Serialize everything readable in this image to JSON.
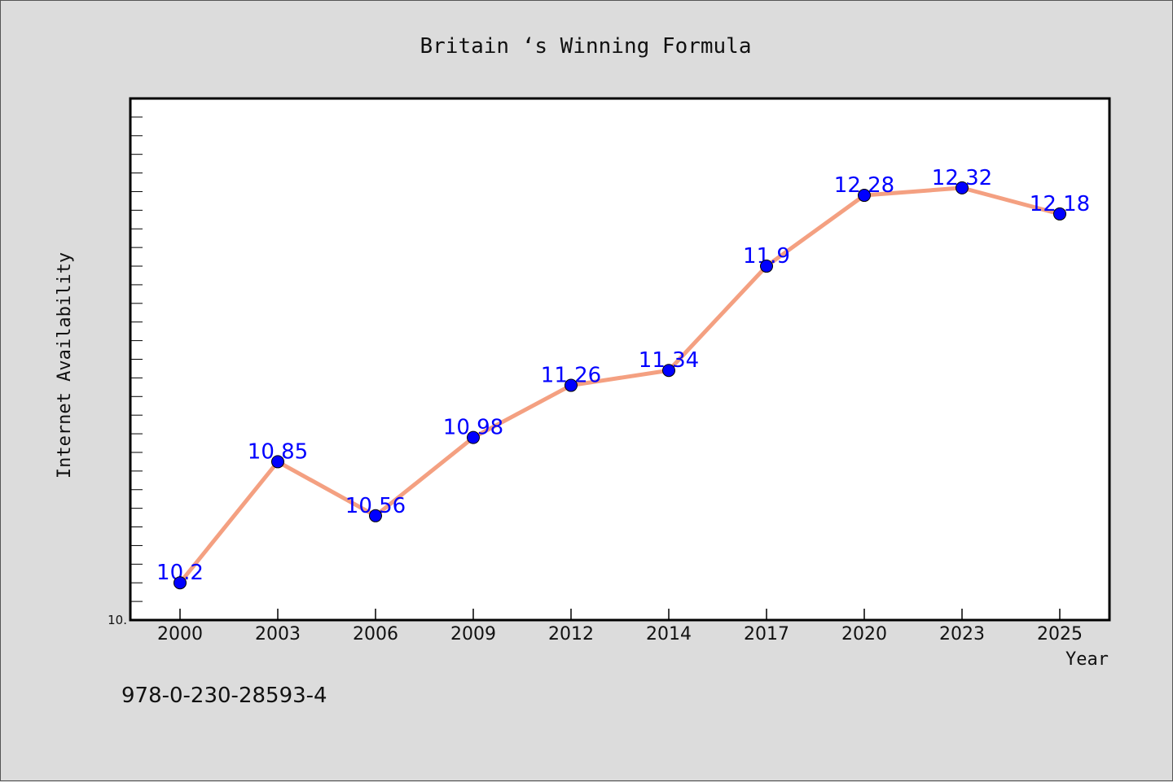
{
  "chart_data": {
    "type": "line",
    "title": "Britain ‘s Winning Formula",
    "xlabel": "Year",
    "ylabel": "Internet Availability",
    "categories": [
      "2000",
      "2003",
      "2006",
      "2009",
      "2012",
      "2014",
      "2017",
      "2020",
      "2023",
      "2025"
    ],
    "series": [
      {
        "values": [
          10.2,
          10.85,
          10.56,
          10.98,
          11.26,
          11.34,
          11.9,
          12.28,
          12.32,
          12.18
        ],
        "data_labels": [
          "10.2",
          "10.85",
          "10.56",
          "10.98",
          "11.26",
          "11.34",
          "11.9",
          "12.28",
          "12.32",
          "12.18"
        ],
        "line_color": "#f4a081",
        "marker_color": "#0000ff",
        "label_color": "#0000ff"
      }
    ],
    "ylim": [
      10.0,
      12.8
    ],
    "y_tick_labels": [
      "10."
    ],
    "grid": false,
    "legend": "none"
  },
  "footnote": "978-0-230-28593-4",
  "colors": {
    "background": "#dcdcdc",
    "plot_background": "#ffffff",
    "line": "#f4a081",
    "marker": "#0000ff",
    "label": "#0000ff"
  }
}
